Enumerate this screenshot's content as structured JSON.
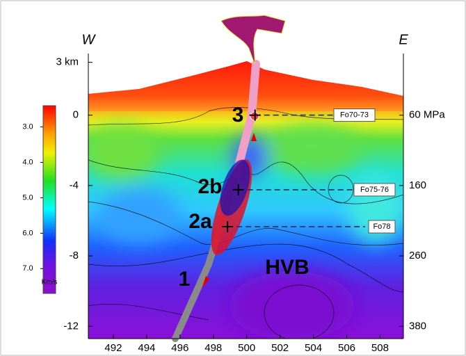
{
  "chart_data": {
    "type": "section",
    "xlim": [
      490.5,
      509.4
    ],
    "xticks": [
      492,
      494,
      496,
      498,
      500,
      502,
      504,
      506,
      508
    ],
    "ylim": [
      -12.7,
      3.5
    ],
    "yticks": [
      {
        "value": 3,
        "label": "3 km"
      },
      0,
      -4,
      -8,
      -12
    ],
    "pressure_labels": [
      {
        "depth": 0,
        "label": "60 MPa"
      },
      {
        "depth": -4,
        "label": "160"
      },
      {
        "depth": -8,
        "label": "260"
      },
      {
        "depth": -12,
        "label": "380"
      }
    ],
    "colorbar": {
      "label": "Km/s",
      "lim": [
        2.4,
        7.7
      ],
      "ticks": [
        {
          "value": 3,
          "label": "3.0"
        },
        {
          "value": 4,
          "label": "4.0"
        },
        {
          "value": 5,
          "label": "5.0"
        },
        {
          "value": 6,
          "label": "6.0"
        },
        {
          "value": 7,
          "label": "7.0"
        }
      ]
    },
    "side_labels": [
      "W",
      "E"
    ],
    "stage_labels": [
      "3",
      "2b",
      "2a",
      "1"
    ],
    "samples": [
      {
        "label": "Fo70-73",
        "x": 500.5,
        "depth": 0
      },
      {
        "label": "Fo75-76",
        "x": 499.5,
        "depth": -4.24
      },
      {
        "label": "Fo78",
        "x": 498.85,
        "depth": -6.34
      }
    ],
    "region_label": "HVB"
  }
}
